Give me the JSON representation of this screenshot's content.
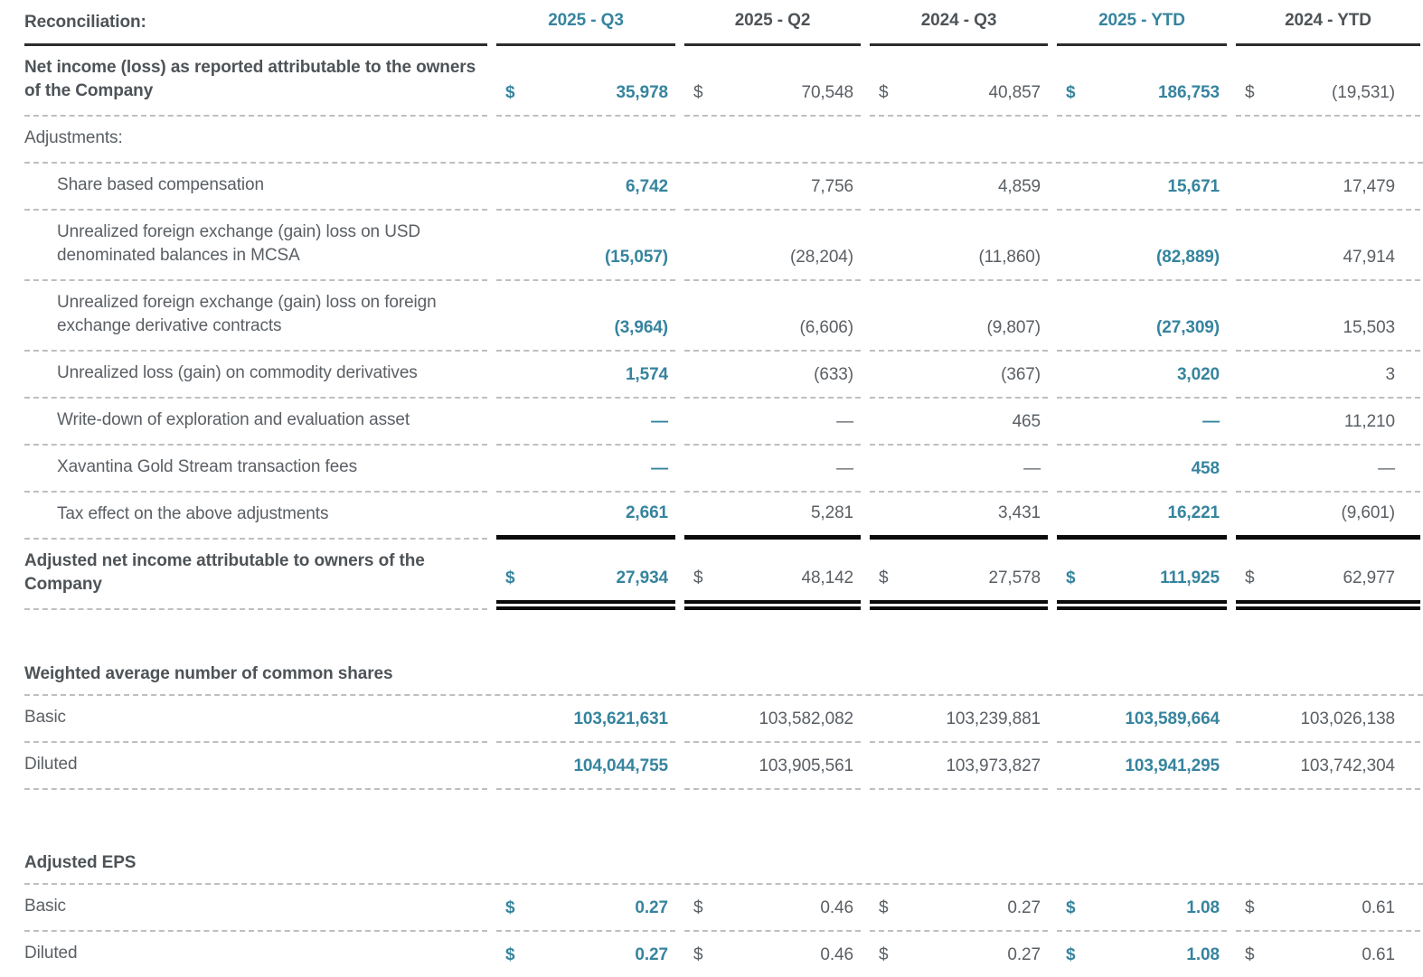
{
  "palette": {
    "teal": "#36849E",
    "text_gray": "#5A5F64",
    "label_dark": "#4E5357",
    "dashed_rule": "#BDBFC0",
    "header_rule": "#2D2D2D",
    "total_rule": "#0B0B0B",
    "background": "#FFFFFF"
  },
  "table": {
    "title": "Reconciliation:",
    "columns": [
      {
        "label": "2025 - Q3",
        "highlight": true
      },
      {
        "label": "2025 - Q2",
        "highlight": false
      },
      {
        "label": "2024 - Q3",
        "highlight": false
      },
      {
        "label": "2025 - YTD",
        "highlight": true
      },
      {
        "label": "2024 - YTD",
        "highlight": false
      }
    ],
    "sections": [
      {
        "heading": null,
        "rows": [
          {
            "label": "Net income (loss) as reported attributable to the owners of the Company",
            "style": "bold",
            "dollar": true,
            "border": "dashed",
            "values": [
              "35,978",
              "70,548",
              "40,857",
              "186,753",
              "(19,531)"
            ]
          },
          {
            "label": "Adjustments:",
            "style": "plain",
            "dollar": false,
            "border": "dashed",
            "values": null
          },
          {
            "label": "Share based compensation",
            "style": "indent",
            "dollar": false,
            "border": "dashed",
            "values": [
              "6,742",
              "7,756",
              "4,859",
              "15,671",
              "17,479"
            ]
          },
          {
            "label": "Unrealized foreign exchange (gain) loss on USD denominated balances in MCSA",
            "style": "indent",
            "dollar": false,
            "border": "dashed",
            "values": [
              "(15,057)",
              "(28,204)",
              "(11,860)",
              "(82,889)",
              "47,914"
            ]
          },
          {
            "label": "Unrealized foreign exchange (gain) loss on foreign exchange derivative contracts",
            "style": "indent",
            "dollar": false,
            "border": "dashed",
            "values": [
              "(3,964)",
              "(6,606)",
              "(9,807)",
              "(27,309)",
              "15,503"
            ]
          },
          {
            "label": "Unrealized loss (gain) on commodity derivatives",
            "style": "indent",
            "dollar": false,
            "border": "dashed",
            "values": [
              "1,574",
              "(633)",
              "(367)",
              "3,020",
              "3"
            ]
          },
          {
            "label": "Write-down of exploration and evaluation asset",
            "style": "indent",
            "dollar": false,
            "border": "dashed",
            "values": [
              "—",
              "—",
              "465",
              "—",
              "11,210"
            ]
          },
          {
            "label": "Xavantina Gold Stream transaction fees",
            "style": "indent",
            "dollar": false,
            "border": "dashed",
            "values": [
              "—",
              "—",
              "—",
              "458",
              "—"
            ]
          },
          {
            "label": "Tax effect on the above adjustments",
            "style": "indent",
            "dollar": false,
            "border": "thick",
            "values": [
              "2,661",
              "5,281",
              "3,431",
              "16,221",
              "(9,601)"
            ]
          },
          {
            "label": "Adjusted net income attributable to owners of the Company",
            "style": "bold",
            "dollar": true,
            "border": "double",
            "values": [
              "27,934",
              "48,142",
              "27,578",
              "111,925",
              "62,977"
            ]
          }
        ]
      },
      {
        "heading": "Weighted average number of common shares",
        "rows": [
          {
            "label": "Basic",
            "style": "plain",
            "dollar": false,
            "border": "dashed",
            "values": [
              "103,621,631",
              "103,582,082",
              "103,239,881",
              "103,589,664",
              "103,026,138"
            ]
          },
          {
            "label": "Diluted",
            "style": "plain",
            "dollar": false,
            "border": "dashed",
            "values": [
              "104,044,755",
              "103,905,561",
              "103,973,827",
              "103,941,295",
              "103,742,304"
            ]
          }
        ]
      },
      {
        "heading": "Adjusted EPS",
        "rows": [
          {
            "label": "Basic",
            "style": "plain",
            "dollar": true,
            "border": "dashed",
            "values": [
              "0.27",
              "0.46",
              "0.27",
              "1.08",
              "0.61"
            ]
          },
          {
            "label": "Diluted",
            "style": "plain",
            "dollar": true,
            "border": "none",
            "values": [
              "0.27",
              "0.46",
              "0.27",
              "1.08",
              "0.61"
            ]
          }
        ]
      }
    ]
  }
}
